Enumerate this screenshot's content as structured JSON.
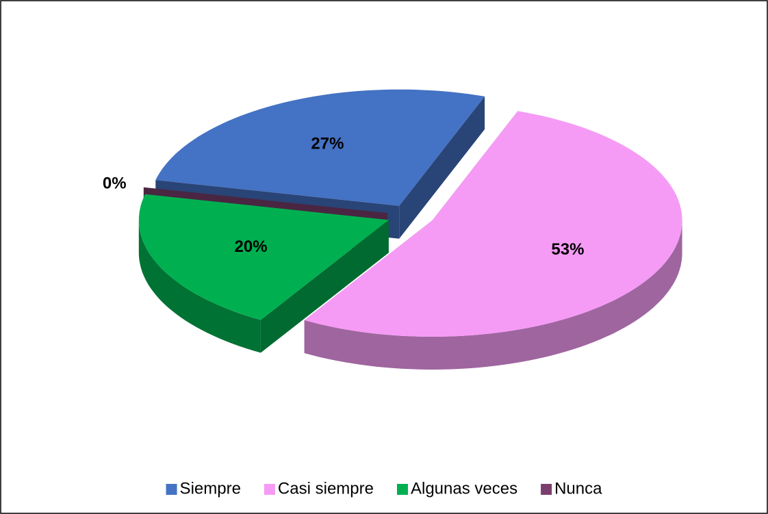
{
  "chart_data": {
    "type": "pie",
    "categories": [
      "Siempre",
      "Casi siempre",
      "Algunas veces",
      "Nunca"
    ],
    "values": [
      27,
      53,
      20,
      0
    ],
    "value_labels": [
      "27%",
      "53%",
      "20%",
      "0%"
    ],
    "colors": [
      "#4472c4",
      "#f59bf5",
      "#00b050",
      "#7b3f6e"
    ],
    "legend": "bottom"
  }
}
